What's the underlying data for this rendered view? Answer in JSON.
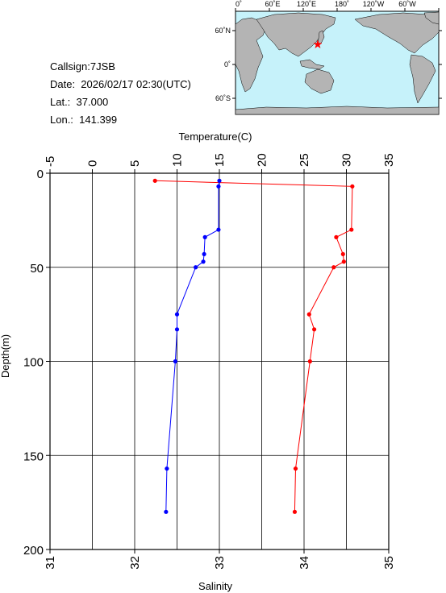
{
  "info": {
    "callsign": "Callsign:7JSB",
    "date": "Date:  2026/02/17 02:30(UTC)",
    "lat": "Lat.:  37.000",
    "lon": "Lon.:  141.399"
  },
  "map": {
    "lon_ticks": [
      "0˚",
      "60˚E",
      "120˚E",
      "180˚",
      "120˚W",
      "60˚W"
    ],
    "lat_ticks": [
      "60˚N",
      "0˚",
      "60˚S"
    ],
    "ocean_color": "#c6f2fa",
    "land_color": "#b4b4b4",
    "marker_color": "#ff0000",
    "marker_icon": "star-icon"
  },
  "chart_data": {
    "type": "line",
    "top_axis_label": "Temperature(C)",
    "bottom_axis_label": "Salinity",
    "left_axis_label": "Depth(m)",
    "temperature_ticks": [
      "-5",
      "0",
      "5",
      "10",
      "15",
      "20",
      "25",
      "30",
      "35"
    ],
    "salinity_ticks": [
      "31",
      "32",
      "33",
      "34",
      "35"
    ],
    "depth_ticks": [
      "0",
      "50",
      "100",
      "150",
      "200"
    ],
    "temperature_range": [
      -5,
      35
    ],
    "salinity_range": [
      31,
      35
    ],
    "depth_range": [
      0,
      200
    ],
    "grid": true,
    "series": [
      {
        "quantity": "temperature",
        "color": "#ff0000",
        "points": [
          {
            "depth": 4,
            "value": 7.4
          },
          {
            "depth": 7,
            "value": 30.7
          },
          {
            "depth": 30,
            "value": 30.6
          },
          {
            "depth": 34,
            "value": 28.8
          },
          {
            "depth": 43,
            "value": 29.6
          },
          {
            "depth": 47,
            "value": 29.7
          },
          {
            "depth": 50,
            "value": 28.5
          },
          {
            "depth": 75,
            "value": 25.6
          },
          {
            "depth": 83,
            "value": 26.2
          },
          {
            "depth": 100,
            "value": 25.7
          },
          {
            "depth": 157,
            "value": 24.0
          },
          {
            "depth": 180,
            "value": 23.9
          }
        ]
      },
      {
        "quantity": "salinity",
        "color": "#0000ff",
        "points": [
          {
            "depth": 4,
            "value": 33.0
          },
          {
            "depth": 7,
            "value": 32.99
          },
          {
            "depth": 30,
            "value": 32.99
          },
          {
            "depth": 34,
            "value": 32.83
          },
          {
            "depth": 43,
            "value": 32.82
          },
          {
            "depth": 47,
            "value": 32.81
          },
          {
            "depth": 50,
            "value": 32.72
          },
          {
            "depth": 75,
            "value": 32.5
          },
          {
            "depth": 83,
            "value": 32.5
          },
          {
            "depth": 100,
            "value": 32.48
          },
          {
            "depth": 157,
            "value": 32.38
          },
          {
            "depth": 180,
            "value": 32.37
          }
        ]
      }
    ]
  }
}
